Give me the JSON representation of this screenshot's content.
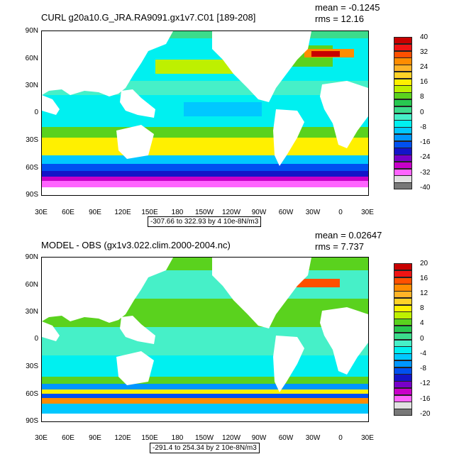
{
  "chart_data": [
    {
      "type": "heatmap",
      "title": "CURL g20a10.G_JRA.RA9091.gx1v7.C01 [189-208]",
      "mean_label": "mean = -0.1245",
      "rms_label": "rms = 12.16",
      "range_note": "-307.66 to 322.93 by 4 10e-8N/m3",
      "lat_ticks": [
        "90N",
        "60N",
        "30N",
        "0",
        "30S",
        "60S",
        "90S"
      ],
      "lon_ticks": [
        "30E",
        "60E",
        "90E",
        "120E",
        "150E",
        "180",
        "150W",
        "120W",
        "90W",
        "60W",
        "30W",
        "0",
        "30E"
      ],
      "colorbar_labels": [
        "40",
        "32",
        "24",
        "16",
        "8",
        "0",
        "-8",
        "-16",
        "-24",
        "-32",
        "-40"
      ],
      "colorbar_colors": [
        "#c80000",
        "#f01414",
        "#ff5000",
        "#ff8c00",
        "#ffb428",
        "#ffd228",
        "#fff000",
        "#bef000",
        "#5ad21e",
        "#28c850",
        "#3cdc8c",
        "#46f0c8",
        "#00f0f0",
        "#00c8ff",
        "#0096ff",
        "#0050f0",
        "#1414c8",
        "#7800c8",
        "#c800c8",
        "#ff64ff",
        "#e1e1e1",
        "#787878"
      ]
    },
    {
      "type": "heatmap",
      "title": "MODEL - OBS (gx1v3.022.clim.2000-2004.nc)",
      "mean_label": "mean = 0.02647",
      "rms_label": "rms = 7.737",
      "range_note": "-291.4 to 254.34 by 2 10e-8N/m3",
      "lat_ticks": [
        "90N",
        "60N",
        "30N",
        "0",
        "30S",
        "60S",
        "90S"
      ],
      "lon_ticks": [
        "30E",
        "60E",
        "90E",
        "120E",
        "150E",
        "180",
        "150W",
        "120W",
        "90W",
        "60W",
        "30W",
        "0",
        "30E"
      ],
      "colorbar_labels": [
        "20",
        "16",
        "12",
        "8",
        "4",
        "0",
        "-4",
        "-8",
        "-12",
        "-16",
        "-20"
      ],
      "colorbar_colors": [
        "#c80000",
        "#f01414",
        "#ff5000",
        "#ff8c00",
        "#ffb428",
        "#ffd228",
        "#fff000",
        "#bef000",
        "#5ad21e",
        "#28c850",
        "#3cdc8c",
        "#46f0c8",
        "#00f0f0",
        "#00c8ff",
        "#0096ff",
        "#0050f0",
        "#1414c8",
        "#7800c8",
        "#c800c8",
        "#ff64ff",
        "#e1e1e1",
        "#787878"
      ]
    }
  ]
}
